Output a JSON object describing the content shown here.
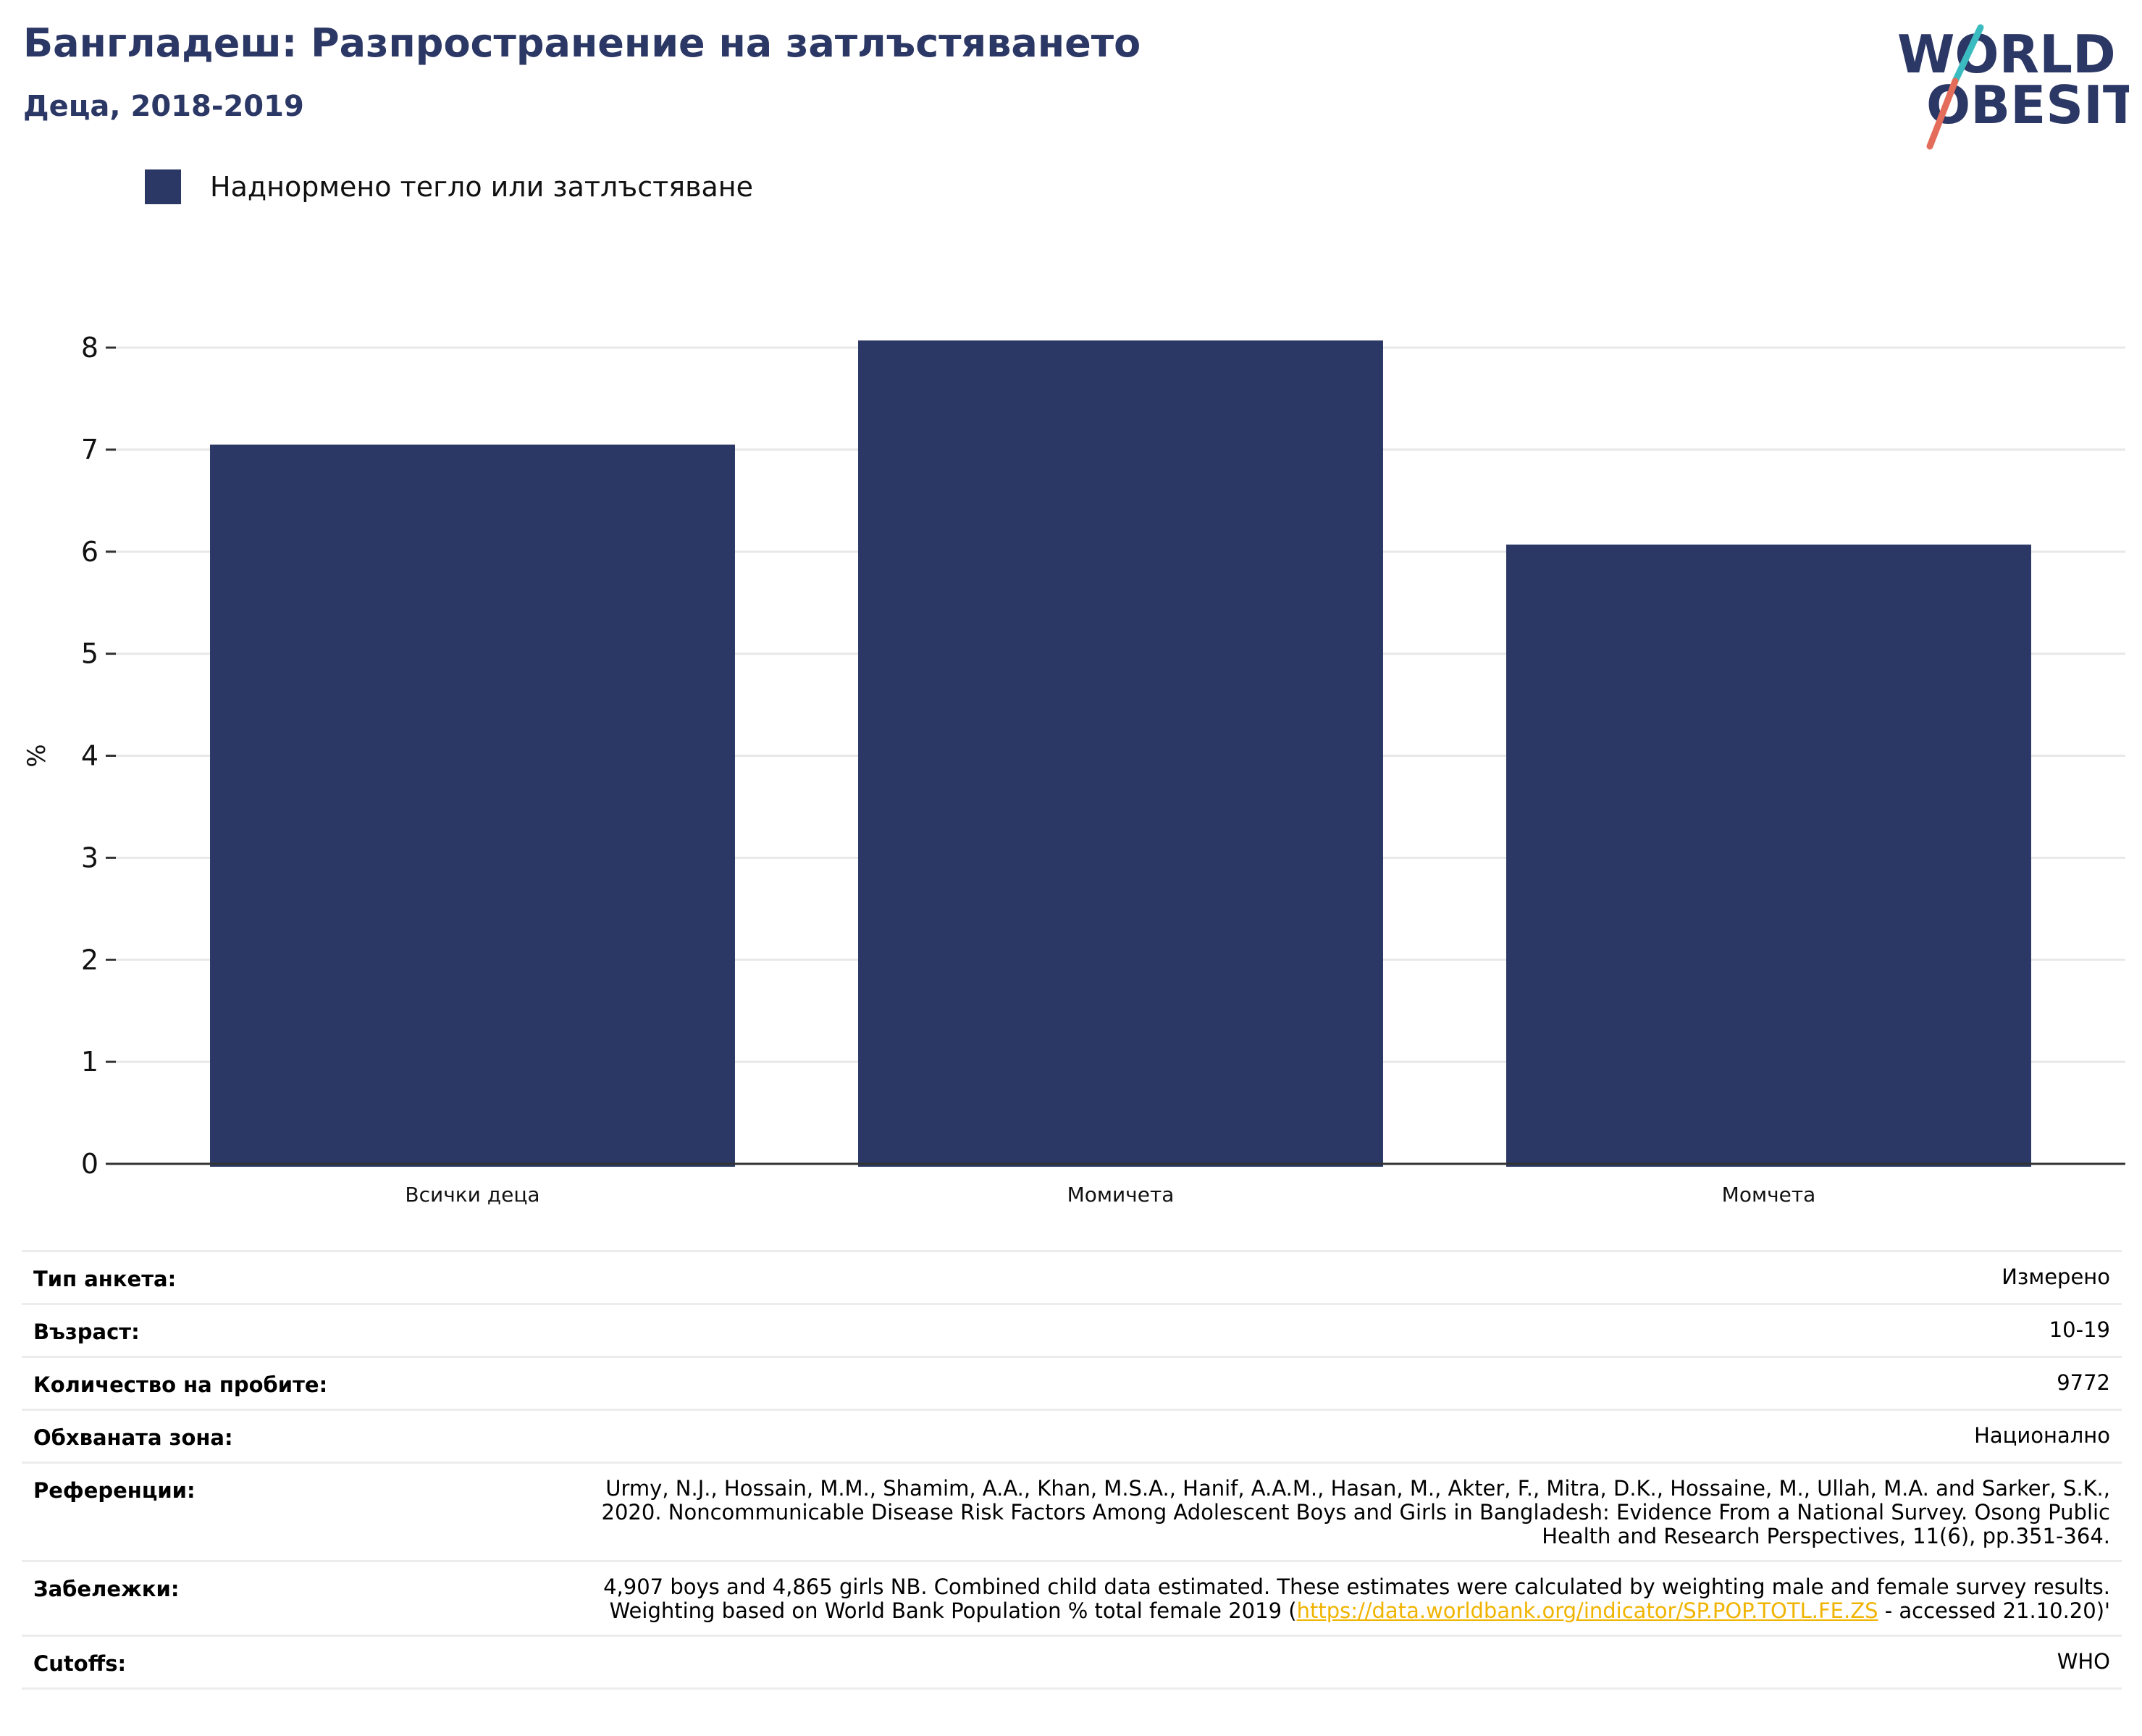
{
  "header": {
    "title": "Бангладеш: Разпространение на затлъстяването",
    "subtitle": "Деца, 2018-2019"
  },
  "logo": {
    "line1": "WORLD",
    "line2": "OBESITY"
  },
  "legend": {
    "label": "Наднормено тегло или затлъстяване",
    "color": "#2b3764"
  },
  "chart_data": {
    "type": "bar",
    "categories": [
      "Всички деца",
      "Момичета",
      "Момчета"
    ],
    "series": [
      {
        "name": "Наднормено тегло или затлъстяване",
        "values": [
          7.05,
          8.07,
          6.07
        ]
      }
    ],
    "ylabel": "%",
    "ylim": [
      0,
      8
    ],
    "yticks": [
      0,
      1,
      2,
      3,
      4,
      5,
      6,
      7,
      8
    ],
    "grid": true,
    "bar_color": "#2b3764"
  },
  "meta": [
    {
      "label": "Тип анкета:",
      "value": "Измерено"
    },
    {
      "label": "Възраст:",
      "value": "10-19"
    },
    {
      "label": "Количество на пробите:",
      "value": "9772"
    },
    {
      "label": "Обхваната зона:",
      "value": "Национално"
    },
    {
      "label": "Референции:",
      "value": "Urmy, N.J., Hossain, M.M., Shamim, A.A., Khan, M.S.A., Hanif, A.A.M., Hasan, M., Akter, F., Mitra, D.K., Hossaine, M., Ullah, M.A. and Sarker, S.K., 2020. Noncommunicable Disease Risk Factors Among Adolescent Boys and Girls in Bangladesh: Evidence From a National Survey. Osong Public Health and Research Perspectives, 11(6), pp.351-364."
    },
    {
      "label": "Забележки:",
      "value_pre": "4,907 boys and 4,865 girls NB. Combined child data estimated. These estimates were calculated by weighting male and female survey results. Weighting based on World Bank Population % total female 2019 (",
      "link": "https://data.worldbank.org/indicator/SP.POP.TOTL.FE.ZS",
      "value_post": " - accessed 21.10.20)'"
    },
    {
      "label": "Cutoffs:",
      "value": "WHO"
    }
  ]
}
